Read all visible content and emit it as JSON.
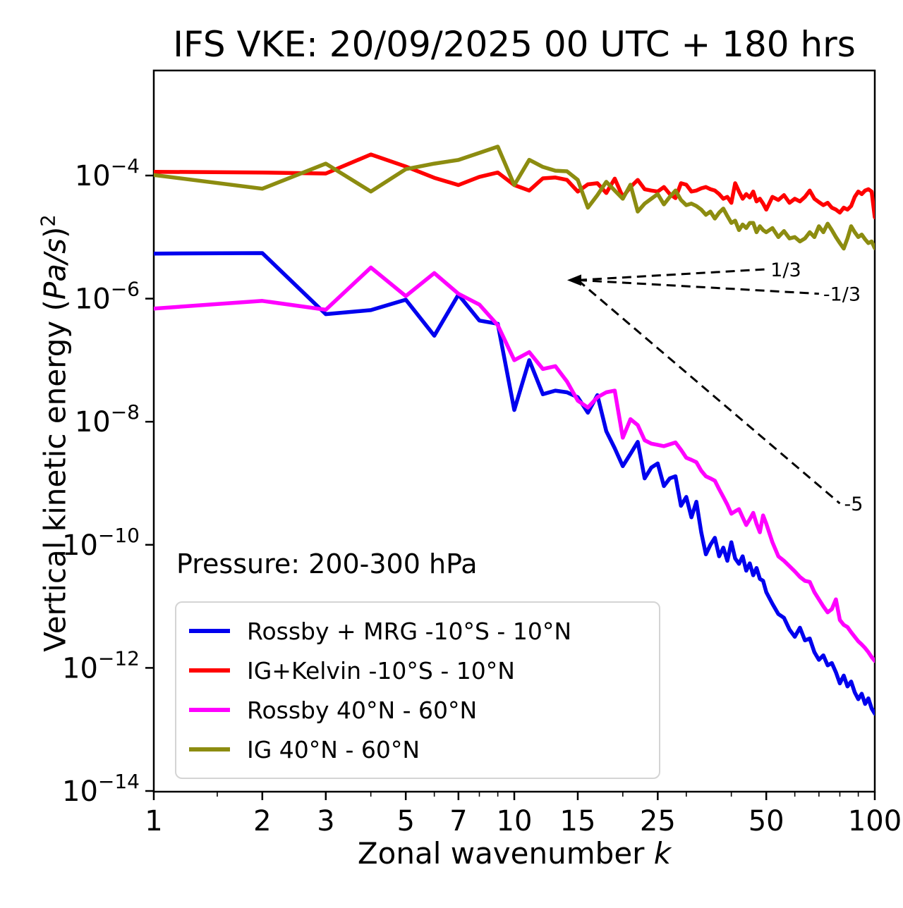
{
  "figure": {
    "title": "IFS VKE: 20/09/2025 00 UTC + 180 hrs",
    "pressure_annotation": "Pressure: 200-300 hPa"
  },
  "axes": {
    "xlabel_text": "Zonal wavenumber ",
    "xlabel_symbol": "k",
    "ylabel_prefix": "Vertical kinetic energy (",
    "ylabel_italic": "Pa/s",
    "ylabel_close": ")",
    "ylabel_exponent": "2",
    "x_major_ticks": [
      1,
      2,
      3,
      5,
      7,
      10,
      15,
      25,
      50,
      100
    ],
    "x_minor_ticks": [
      1.5,
      4,
      6,
      8,
      9,
      20,
      30,
      40,
      60,
      70,
      80,
      90
    ],
    "y_tick_base": "10",
    "y_ticks": [
      {
        "exponent": "−4",
        "value": 0.0001
      },
      {
        "exponent": "−6",
        "value": 1e-06
      },
      {
        "exponent": "−8",
        "value": 1e-08
      },
      {
        "exponent": "−10",
        "value": 1e-10
      },
      {
        "exponent": "−12",
        "value": 1e-12
      },
      {
        "exponent": "−14",
        "value": 1e-14
      }
    ]
  },
  "chart_data": {
    "type": "line",
    "x_scale": "log",
    "y_scale": "log",
    "title": "IFS VKE: 20/09/2025 00 UTC + 180 hrs",
    "xlabel": "Zonal wavenumber k",
    "ylabel": "Vertical kinetic energy (Pa/s)^2",
    "xlim": [
      1,
      100
    ],
    "ylim": [
      1e-14,
      0.005
    ],
    "grid": false,
    "legend_position": "lower left",
    "k": [
      1,
      2,
      3,
      4,
      5,
      6,
      7,
      8,
      9,
      10,
      11,
      12,
      13,
      14,
      15,
      16,
      17,
      18,
      19,
      20,
      21,
      22,
      23,
      24,
      25,
      26,
      27,
      28,
      29,
      30,
      31,
      32,
      33,
      34,
      35,
      36,
      37,
      38,
      39,
      40,
      41,
      42,
      43,
      44,
      45,
      46,
      47,
      48,
      49,
      50,
      52,
      54,
      56,
      58,
      60,
      62,
      64,
      66,
      68,
      70,
      72,
      74,
      76,
      78,
      80,
      82,
      84,
      86,
      88,
      90,
      92,
      94,
      96,
      98,
      100
    ],
    "series": [
      {
        "name": "Rossby + MRG -10°S - 10°N",
        "color": "#0000ee",
        "values": [
          5.4e-06,
          5.5e-06,
          5.6e-07,
          6.5e-07,
          9.6e-07,
          2.5e-07,
          1.16e-06,
          4.4e-07,
          3.9e-07,
          1.55e-08,
          1e-07,
          2.8e-08,
          3.2e-08,
          3e-08,
          2.5e-08,
          1.4e-08,
          2.7e-08,
          7e-09,
          3.7e-09,
          1.9e-09,
          3e-09,
          4.7e-09,
          1.2e-09,
          1.8e-09,
          2.1e-09,
          9e-10,
          1.2e-09,
          1.3e-09,
          4.3e-10,
          6e-10,
          2.8e-10,
          5e-10,
          1.6e-10,
          7e-11,
          1e-10,
          1.3e-10,
          6.5e-11,
          9e-11,
          5.5e-11,
          1.1e-10,
          6e-11,
          4.9e-11,
          6.5e-11,
          3.8e-11,
          5e-11,
          3.2e-11,
          4.2e-11,
          2.8e-11,
          2.6e-11,
          1.7e-11,
          1.1e-11,
          7.5e-12,
          6.5e-12,
          4.2e-12,
          3.2e-12,
          4.5e-12,
          2.8e-12,
          3e-12,
          1.8e-12,
          1.35e-12,
          1.6e-12,
          1.1e-12,
          1.2e-12,
          8.5e-13,
          5.6e-13,
          7.5e-13,
          5e-13,
          6e-13,
          4e-13,
          3.1e-13,
          3.8e-13,
          2.6e-13,
          3.2e-13,
          2.2e-13,
          1.8e-13
        ]
      },
      {
        "name": "IG+Kelvin -10°S - 10°N",
        "color": "#ff0000",
        "values": [
          0.000115,
          0.000112,
          0.000108,
          0.00022,
          0.00014,
          9.2e-05,
          7e-05,
          9.5e-05,
          0.000112,
          7e-05,
          5.7e-05,
          9e-05,
          9.3e-05,
          8.5e-05,
          5.5e-05,
          7.2e-05,
          7.5e-05,
          5.2e-05,
          8.9e-05,
          4.5e-05,
          6.5e-05,
          8.5e-05,
          6e-05,
          5.7e-05,
          5.5e-05,
          6.5e-05,
          5e-05,
          4.3e-05,
          7.5e-05,
          7.1e-05,
          5.5e-05,
          5.7e-05,
          6.2e-05,
          6.5e-05,
          6e-05,
          5.7e-05,
          5e-05,
          4.2e-05,
          4.5e-05,
          3.6e-05,
          7.5e-05,
          5.5e-05,
          4.2e-05,
          5e-05,
          4.4e-05,
          5.5e-05,
          3.8e-05,
          4.2e-05,
          3.5e-05,
          2.8e-05,
          4.5e-05,
          4e-05,
          4.8e-05,
          3.6e-05,
          4.2e-05,
          3.8e-05,
          4.5e-05,
          5.7e-05,
          4.2e-05,
          3.7e-05,
          3.3e-05,
          3.6e-05,
          3e-05,
          2.8e-05,
          2.5e-05,
          3e-05,
          2.8e-05,
          3.2e-05,
          4.5e-05,
          5.5e-05,
          5e-05,
          5.7e-05,
          6e-05,
          5.5e-05,
          2.1e-05
        ]
      },
      {
        "name": "Rossby 40°N - 60°N",
        "color": "#ff00ff",
        "values": [
          6.9e-07,
          9.2e-07,
          6.6e-07,
          3.2e-06,
          1.1e-06,
          2.6e-06,
          1.2e-06,
          8e-07,
          3.7e-07,
          1e-07,
          1.35e-07,
          7.2e-08,
          8e-08,
          4.5e-08,
          2.2e-08,
          1.7e-08,
          2.5e-08,
          3e-08,
          3.2e-08,
          5.5e-09,
          1.1e-08,
          8.8e-09,
          5e-09,
          4.4e-09,
          4.2e-09,
          4e-09,
          4.3e-09,
          4.6e-09,
          3.5e-09,
          2.6e-09,
          2.4e-09,
          2.2e-09,
          1.6e-09,
          1.3e-09,
          1.2e-09,
          1.1e-09,
          8e-10,
          6e-10,
          4.5e-10,
          3.2e-10,
          3.5e-10,
          3.8e-10,
          2.8e-10,
          2.1e-10,
          2.6e-10,
          3.3e-10,
          2.2e-10,
          1.6e-10,
          3e-10,
          2.2e-10,
          1.1e-10,
          6.5e-11,
          5.5e-11,
          4.5e-11,
          3.7e-11,
          3e-11,
          2.6e-11,
          2.5e-11,
          1.7e-11,
          1.3e-11,
          1e-11,
          8e-12,
          9e-12,
          1.3e-11,
          6e-12,
          5e-12,
          4.6e-12,
          3.8e-12,
          3.2e-12,
          2.7e-12,
          2.4e-12,
          2.1e-12,
          1.8e-12,
          1.5e-12,
          1.3e-12
        ]
      },
      {
        "name": "IG 40°N - 60°N",
        "color": "#8c8c10",
        "values": [
          0.000102,
          6.1e-05,
          0.000156,
          5.5e-05,
          0.000127,
          0.000156,
          0.000179,
          0.000233,
          0.000295,
          7e-05,
          0.00018,
          0.000138,
          0.00012,
          0.000117,
          8.5e-05,
          3e-05,
          4.8e-05,
          7.9e-05,
          5.7e-05,
          4.2e-05,
          7.1e-05,
          2.6e-05,
          3.5e-05,
          4.2e-05,
          5e-05,
          3.4e-05,
          4.5e-05,
          5.7e-05,
          4e-05,
          3.3e-05,
          3.5e-05,
          3.2e-05,
          2.8e-05,
          2.3e-05,
          2.6e-05,
          2e-05,
          2.5e-05,
          2.9e-05,
          2.2e-05,
          1.7e-05,
          1.85e-05,
          1.3e-05,
          1.6e-05,
          1.4e-05,
          1.7e-05,
          1.7e-05,
          1.2e-05,
          1.5e-05,
          1.3e-05,
          1.2e-05,
          1.4e-05,
          1e-05,
          1.25e-05,
          9.5e-06,
          1e-05,
          8.5e-06,
          9.5e-06,
          1.2e-05,
          1e-05,
          1.5e-05,
          1.2e-05,
          1.65e-05,
          1.3e-05,
          1e-05,
          8e-06,
          6.5e-06,
          9.5e-06,
          1.5e-05,
          1.2e-05,
          1e-05,
          1.1e-05,
          9.2e-06,
          8e-06,
          8.5e-06,
          6.6e-06
        ]
      }
    ],
    "reference_lines": [
      {
        "label": "1/3",
        "k": [
          15,
          50
        ],
        "values": [
          2e-06,
          3e-06
        ]
      },
      {
        "label": "-1/3",
        "k": [
          15,
          70
        ],
        "values": [
          2e-06,
          1.2e-06
        ]
      },
      {
        "label": "-5",
        "k": [
          15,
          80
        ],
        "values": [
          2e-06,
          4.7e-10
        ]
      }
    ]
  },
  "legend": {
    "items": [
      {
        "label": "Rossby + MRG -10°S - 10°N",
        "color": "#0000ee"
      },
      {
        "label": "IG+Kelvin -10°S - 10°N",
        "color": "#ff0000"
      },
      {
        "label": "Rossby 40°N - 60°N",
        "color": "#ff00ff"
      },
      {
        "label": "IG 40°N - 60°N",
        "color": "#8c8c10"
      }
    ]
  }
}
